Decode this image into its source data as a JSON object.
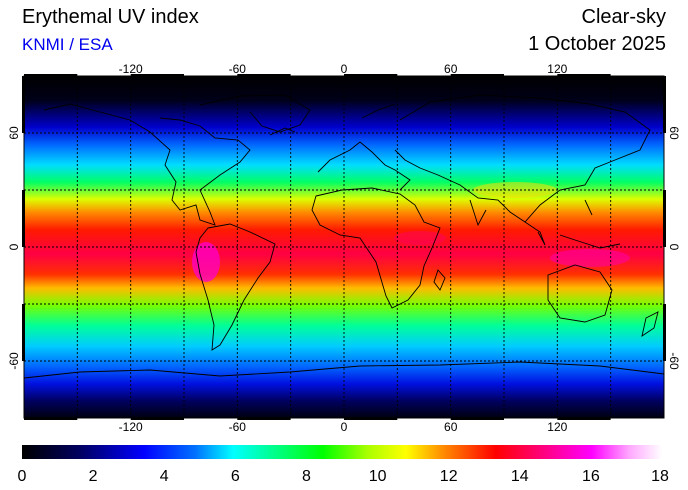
{
  "header": {
    "title": "Erythemal UV index",
    "credit": "KNMI / ESA",
    "mode": "Clear-sky",
    "date": "1 October 2025"
  },
  "map": {
    "projection": "equirectangular",
    "lon_range": [
      -180,
      180
    ],
    "lat_range": [
      -90,
      90
    ],
    "grid": true,
    "lon_ticks": [
      "-120",
      "-60",
      "0",
      "60",
      "120"
    ],
    "lat_ticks": [
      "60",
      "0",
      "-60"
    ],
    "colormap": [
      "#000000",
      "#0000ff",
      "#00ffff",
      "#00ff00",
      "#ffff00",
      "#ff0000",
      "#ff00cc",
      "#ffffff"
    ]
  },
  "colorbar": {
    "min": 0,
    "max": 18,
    "labels": [
      "0",
      "2",
      "4",
      "6",
      "8",
      "10",
      "12",
      "14",
      "16",
      "18"
    ]
  }
}
